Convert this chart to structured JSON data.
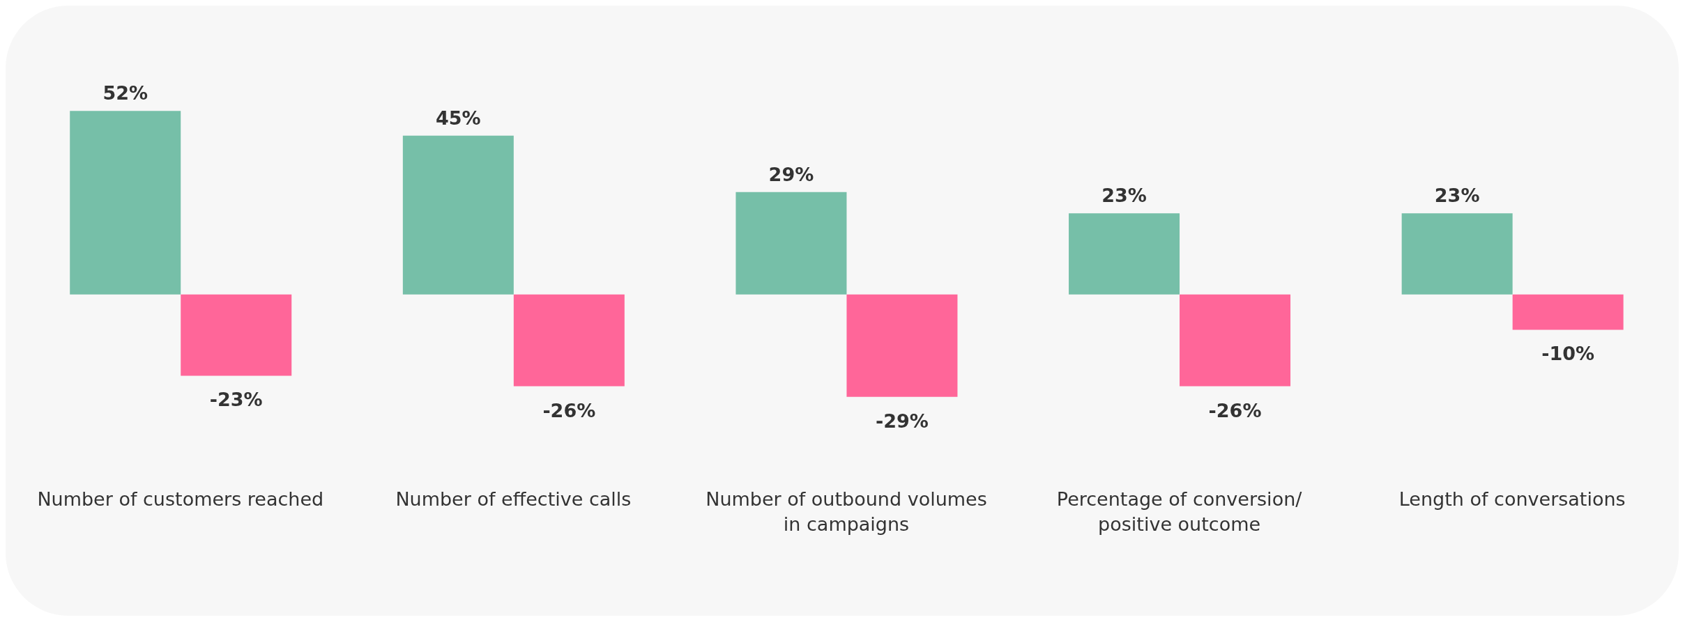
{
  "chart_data": {
    "type": "bar",
    "categories": [
      "Number of customers reached",
      "Number of effective calls",
      "Number of outbound volumes in campaigns",
      "Percentage of conversion/ positive outcome",
      "Length of conversations"
    ],
    "series": [
      {
        "color": "#76bfa8",
        "values": [
          52,
          45,
          29,
          23,
          23
        ],
        "value_labels": [
          "52%",
          "45%",
          "29%",
          "23%",
          "23%"
        ]
      },
      {
        "color": "#ff6699",
        "values": [
          -23,
          -26,
          -29,
          -26,
          -10
        ],
        "value_labels": [
          "-23%",
          "-26%",
          "-29%",
          "-26%",
          "-10%"
        ]
      }
    ],
    "grid": false,
    "legend": false
  }
}
